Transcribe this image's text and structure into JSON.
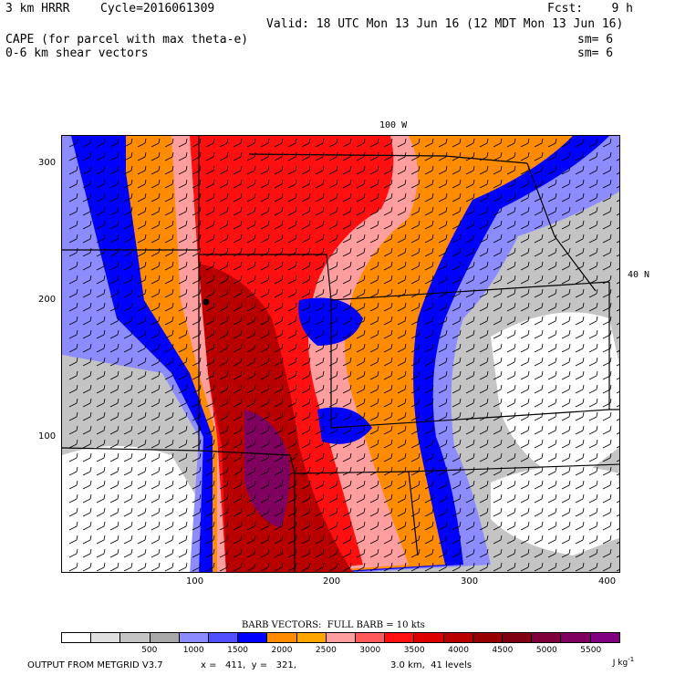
{
  "header": {
    "model": "3 km HRRR",
    "cycle": "Cycle=2016061309",
    "fcst": "Fcst:    9 h",
    "valid": "Valid: 18 UTC Mon 13 Jun 16 (12 MDT Mon 13 Jun 16)",
    "field1": "CAPE (for parcel with max theta-e)",
    "field2": "0-6 km shear vectors",
    "sm1": "sm= 6",
    "sm2": "sm= 6"
  },
  "map": {
    "lon_label": "100 W",
    "lat_label": "40 N",
    "x_ticks": [
      "100",
      "200",
      "300",
      "400"
    ],
    "y_ticks": [
      "300",
      "200",
      "100"
    ]
  },
  "legend": {
    "title": "BARB VECTORS:  FULL BARB = 10 kts",
    "units": "J kg",
    "units_exp": "-1",
    "labels": [
      "500",
      "1000",
      "1500",
      "2000",
      "2500",
      "3000",
      "3500",
      "4000",
      "4500",
      "5000",
      "5500"
    ],
    "colors": [
      "#ffffff",
      "#e0e0e0",
      "#c4c4c4",
      "#a8a8a8",
      "#8c8cff",
      "#5050ff",
      "#0000ff",
      "#ff8c00",
      "#ffa500",
      "#ff9e9e",
      "#ff5a5a",
      "#ff1010",
      "#dc0000",
      "#b80000",
      "#960000",
      "#800010",
      "#80003c",
      "#800060",
      "#800080"
    ]
  },
  "footer": {
    "source": "OUTPUT FROM METGRID V3.7",
    "coords": "x =   411,  y =   321,",
    "levels": "3.0 km,  41 levels"
  }
}
